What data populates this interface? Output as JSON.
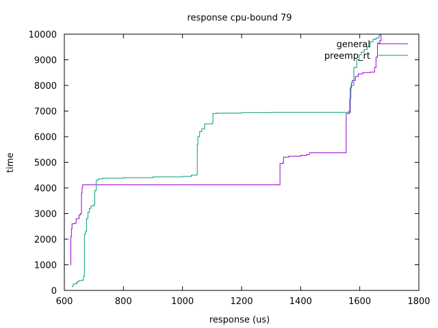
{
  "chart_data": {
    "type": "line",
    "title": "response cpu-bound 79",
    "xlabel": "response (us)",
    "ylabel": "time",
    "xlim": [
      600,
      1800
    ],
    "ylim": [
      0,
      10000
    ],
    "xticks": [
      600,
      800,
      1000,
      1200,
      1400,
      1600,
      1800
    ],
    "yticks": [
      0,
      1000,
      2000,
      3000,
      4000,
      5000,
      6000,
      7000,
      8000,
      9000,
      10000
    ],
    "grid": false,
    "legend": "top-right",
    "series": [
      {
        "name": "general",
        "color": "#9400d3",
        "points": [
          [
            621,
            1000
          ],
          [
            622,
            2100
          ],
          [
            624,
            2400
          ],
          [
            626,
            2600
          ],
          [
            635,
            2620
          ],
          [
            640,
            2800
          ],
          [
            650,
            2950
          ],
          [
            655,
            3000
          ],
          [
            658,
            3800
          ],
          [
            660,
            4000
          ],
          [
            662,
            4120
          ],
          [
            700,
            4120
          ],
          [
            1000,
            4120
          ],
          [
            1328,
            4120
          ],
          [
            1330,
            4950
          ],
          [
            1340,
            5000
          ],
          [
            1342,
            5200
          ],
          [
            1360,
            5240
          ],
          [
            1400,
            5270
          ],
          [
            1420,
            5300
          ],
          [
            1430,
            5370
          ],
          [
            1500,
            5370
          ],
          [
            1552,
            5370
          ],
          [
            1554,
            6900
          ],
          [
            1565,
            6950
          ],
          [
            1568,
            7900
          ],
          [
            1572,
            8100
          ],
          [
            1575,
            8200
          ],
          [
            1585,
            8350
          ],
          [
            1595,
            8450
          ],
          [
            1610,
            8500
          ],
          [
            1635,
            8520
          ],
          [
            1650,
            8700
          ],
          [
            1655,
            9100
          ],
          [
            1660,
            9650
          ],
          [
            1668,
            9750
          ],
          [
            1672,
            10000
          ]
        ]
      },
      {
        "name": "preemp_rt",
        "color": "#009e73",
        "points": [
          [
            625,
            150
          ],
          [
            630,
            250
          ],
          [
            640,
            300
          ],
          [
            645,
            350
          ],
          [
            650,
            380
          ],
          [
            660,
            400
          ],
          [
            665,
            550
          ],
          [
            668,
            2200
          ],
          [
            672,
            2300
          ],
          [
            675,
            2800
          ],
          [
            680,
            3050
          ],
          [
            685,
            3200
          ],
          [
            690,
            3300
          ],
          [
            700,
            3350
          ],
          [
            703,
            3900
          ],
          [
            708,
            4300
          ],
          [
            715,
            4350
          ],
          [
            730,
            4380
          ],
          [
            800,
            4400
          ],
          [
            900,
            4430
          ],
          [
            1000,
            4450
          ],
          [
            1030,
            4500
          ],
          [
            1048,
            4530
          ],
          [
            1050,
            5700
          ],
          [
            1052,
            6000
          ],
          [
            1058,
            6200
          ],
          [
            1065,
            6300
          ],
          [
            1075,
            6500
          ],
          [
            1100,
            6530
          ],
          [
            1103,
            6900
          ],
          [
            1115,
            6920
          ],
          [
            1200,
            6940
          ],
          [
            1300,
            6950
          ],
          [
            1500,
            6950
          ],
          [
            1560,
            6950
          ],
          [
            1563,
            7000
          ],
          [
            1566,
            7500
          ],
          [
            1570,
            8000
          ],
          [
            1580,
            8700
          ],
          [
            1590,
            9000
          ],
          [
            1598,
            9200
          ],
          [
            1605,
            9300
          ],
          [
            1615,
            9400
          ],
          [
            1625,
            9500
          ],
          [
            1635,
            9700
          ],
          [
            1645,
            9800
          ],
          [
            1655,
            9850
          ],
          [
            1665,
            9950
          ],
          [
            1668,
            10000
          ]
        ]
      }
    ]
  }
}
